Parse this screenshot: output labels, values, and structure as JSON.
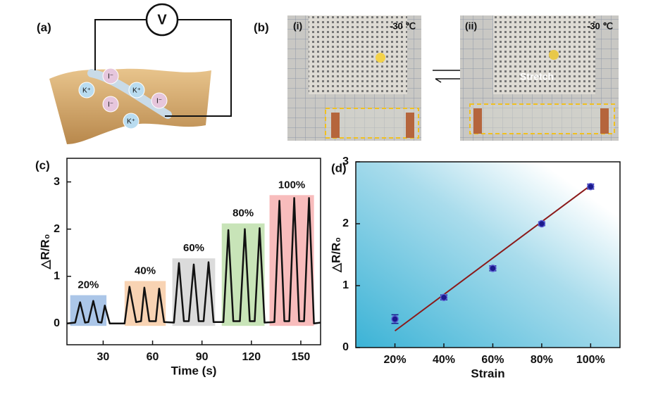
{
  "figure": {
    "panel_a": {
      "label": "(a)",
      "voltmeter": "V",
      "ions": [
        "K⁺",
        "I⁻",
        "K⁺",
        "I⁻",
        "I⁻",
        "K⁺"
      ]
    },
    "panel_b": {
      "label": "(b)",
      "photos": [
        {
          "label": "(i)",
          "temperature": "-30 ℃"
        },
        {
          "label": "(ii)",
          "temperature": "-30 ℃",
          "annotation": "Stretch"
        }
      ]
    },
    "panel_c": {
      "label": "(c)"
    },
    "panel_d": {
      "label": "(d)"
    }
  },
  "chart_data": [
    {
      "type": "line",
      "xlabel": "Time (s)",
      "ylabel": "△R/R₀",
      "color": "#111111",
      "x": [
        8,
        13,
        16,
        19,
        21,
        24,
        27,
        29,
        31,
        34,
        43,
        46,
        50,
        53,
        55,
        58,
        62,
        64,
        67,
        73,
        76,
        79,
        82,
        85,
        88,
        91,
        94,
        97,
        103,
        106,
        109,
        113,
        116,
        119,
        122,
        125,
        128,
        134,
        137,
        140,
        143,
        146,
        149,
        152,
        155,
        158,
        162
      ],
      "values": [
        0,
        0.02,
        0.45,
        0.02,
        0.03,
        0.48,
        0.03,
        0.02,
        0.38,
        0,
        0,
        0.78,
        0.03,
        0.05,
        0.76,
        0.05,
        0.05,
        0.74,
        0.03,
        0.02,
        1.28,
        0.05,
        0.05,
        1.25,
        0.05,
        0.05,
        1.3,
        0.03,
        0.03,
        1.98,
        0.05,
        0.05,
        2.0,
        0.05,
        0.05,
        2.02,
        0.02,
        0.03,
        2.6,
        0.05,
        0.05,
        2.66,
        0.05,
        0.05,
        2.66,
        0,
        0.02
      ],
      "regions": [
        {
          "label": "20%",
          "color": "#8fb3e0",
          "x": [
            10,
            32
          ],
          "y": [
            -0.05,
            0.6
          ]
        },
        {
          "label": "40%",
          "color": "#f5c49a",
          "x": [
            43,
            68
          ],
          "y": [
            -0.05,
            0.9
          ]
        },
        {
          "label": "60%",
          "color": "#cfcfcf",
          "x": [
            72,
            98
          ],
          "y": [
            -0.05,
            1.38
          ]
        },
        {
          "label": "80%",
          "color": "#b5dba0",
          "x": [
            102,
            128
          ],
          "y": [
            -0.05,
            2.12
          ]
        },
        {
          "label": "100%",
          "color": "#f5a5a5",
          "x": [
            131,
            158
          ],
          "y": [
            -0.05,
            2.72
          ]
        }
      ],
      "xlim": [
        8,
        162
      ],
      "ylim": [
        -0.45,
        3.5
      ],
      "xticks": [
        30,
        60,
        90,
        120,
        150
      ],
      "yticks": [
        0,
        1,
        2,
        3
      ]
    },
    {
      "type": "scatter",
      "xlabel": "Strain",
      "ylabel": "△R/R₀",
      "color": "#1a1a8c",
      "x": [
        20,
        40,
        60,
        80,
        100
      ],
      "values": [
        0.46,
        0.81,
        1.28,
        2.0,
        2.6
      ],
      "errors": [
        0.07,
        0.04,
        0.04,
        0.03,
        0.04
      ],
      "fit": {
        "color": "#8b1a1a",
        "x": [
          20,
          100
        ],
        "y": [
          0.27,
          2.62
        ]
      },
      "xlim": [
        4,
        112
      ],
      "ylim": [
        0,
        3
      ],
      "xticks": [
        {
          "value": 20,
          "label": "20%"
        },
        {
          "value": 40,
          "label": "40%"
        },
        {
          "value": 60,
          "label": "60%"
        },
        {
          "value": 80,
          "label": "80%"
        },
        {
          "value": 100,
          "label": "100%"
        }
      ],
      "yticks": [
        0,
        1,
        2,
        3
      ]
    }
  ]
}
